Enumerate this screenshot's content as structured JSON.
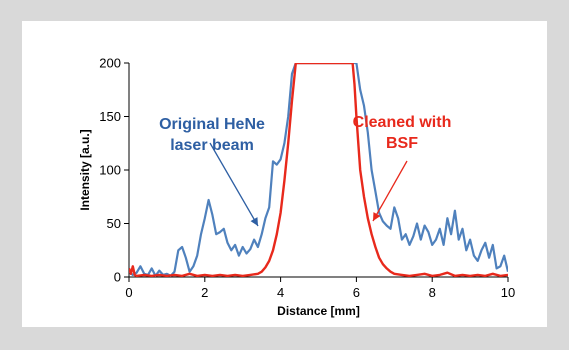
{
  "colors": {
    "blue": "#4f81bd",
    "red": "#e8291c",
    "annot_blue": "#2e5fa3"
  },
  "chart_data": {
    "type": "line",
    "xlabel": "Distance [mm]",
    "ylabel": "Intensity [a.u.]",
    "xlim": [
      0,
      10
    ],
    "ylim": [
      0,
      200
    ],
    "x_ticks": [
      "0",
      "2",
      "4",
      "6",
      "8",
      "10"
    ],
    "y_ticks": [
      "0",
      "50",
      "100",
      "150",
      "200"
    ],
    "grid": false,
    "series": [
      {
        "name": "Original HeNe laser beam",
        "color": "#4f81bd",
        "x": [
          0,
          0.1,
          0.2,
          0.3,
          0.4,
          0.5,
          0.6,
          0.7,
          0.8,
          0.9,
          1.0,
          1.1,
          1.2,
          1.3,
          1.4,
          1.5,
          1.6,
          1.7,
          1.8,
          1.9,
          2.0,
          2.1,
          2.2,
          2.3,
          2.4,
          2.5,
          2.6,
          2.7,
          2.8,
          2.9,
          3.0,
          3.1,
          3.2,
          3.3,
          3.4,
          3.5,
          3.6,
          3.7,
          3.8,
          3.9,
          4.0,
          4.1,
          4.2,
          4.3,
          4.4,
          4.45,
          5.9,
          6.0,
          6.1,
          6.2,
          6.3,
          6.4,
          6.5,
          6.6,
          6.7,
          6.8,
          6.9,
          7.0,
          7.1,
          7.2,
          7.3,
          7.4,
          7.5,
          7.6,
          7.7,
          7.8,
          7.9,
          8.0,
          8.1,
          8.2,
          8.3,
          8.4,
          8.5,
          8.6,
          8.7,
          8.8,
          8.9,
          9.0,
          9.1,
          9.2,
          9.3,
          9.4,
          9.5,
          9.6,
          9.7,
          9.8,
          9.9,
          10.0
        ],
        "values": [
          5,
          2,
          4,
          10,
          3,
          2,
          8,
          1,
          6,
          2,
          3,
          1,
          5,
          25,
          28,
          18,
          5,
          10,
          20,
          40,
          55,
          72,
          58,
          40,
          42,
          45,
          32,
          25,
          30,
          20,
          28,
          22,
          26,
          35,
          28,
          40,
          55,
          65,
          108,
          105,
          110,
          125,
          150,
          190,
          200,
          200,
          200,
          200,
          175,
          160,
          135,
          100,
          80,
          60,
          52,
          48,
          45,
          65,
          55,
          35,
          40,
          30,
          38,
          50,
          35,
          48,
          42,
          30,
          35,
          45,
          30,
          55,
          40,
          62,
          35,
          45,
          25,
          35,
          20,
          15,
          25,
          32,
          18,
          30,
          8,
          10,
          20,
          5
        ]
      },
      {
        "name": "Cleaned with BSF",
        "color": "#e8291c",
        "x": [
          0,
          0.05,
          0.1,
          0.15,
          0.2,
          0.4,
          0.6,
          0.8,
          1.0,
          1.2,
          1.4,
          1.6,
          1.8,
          2.0,
          2.2,
          2.4,
          2.6,
          2.8,
          3.0,
          3.2,
          3.4,
          3.5,
          3.6,
          3.7,
          3.8,
          3.9,
          4.0,
          4.1,
          4.2,
          4.3,
          4.4,
          4.45,
          5.9,
          5.95,
          6.0,
          6.05,
          6.1,
          6.2,
          6.3,
          6.4,
          6.5,
          6.6,
          6.7,
          6.8,
          6.9,
          7.0,
          7.2,
          7.4,
          7.6,
          7.8,
          8.0,
          8.2,
          8.4,
          8.6,
          8.8,
          9.0,
          9.2,
          9.4,
          9.6,
          9.8,
          10.0
        ],
        "values": [
          8,
          3,
          10,
          2,
          1,
          2,
          1,
          2,
          1,
          2,
          1,
          3,
          1,
          2,
          1,
          2,
          1,
          2,
          1,
          2,
          3,
          5,
          9,
          15,
          25,
          40,
          60,
          90,
          125,
          165,
          200,
          200,
          200,
          180,
          150,
          125,
          100,
          75,
          55,
          40,
          28,
          18,
          12,
          8,
          5,
          3,
          2,
          1,
          2,
          3,
          1,
          2,
          4,
          1,
          2,
          1,
          2,
          1,
          3,
          1,
          2
        ]
      }
    ],
    "annotations": [
      {
        "lines": [
          "Original HeNe",
          "laser beam"
        ],
        "color": "#2e5fa3",
        "series": 0
      },
      {
        "lines": [
          "Cleaned with",
          "BSF"
        ],
        "color": "#e8291c",
        "series": 1
      }
    ]
  }
}
